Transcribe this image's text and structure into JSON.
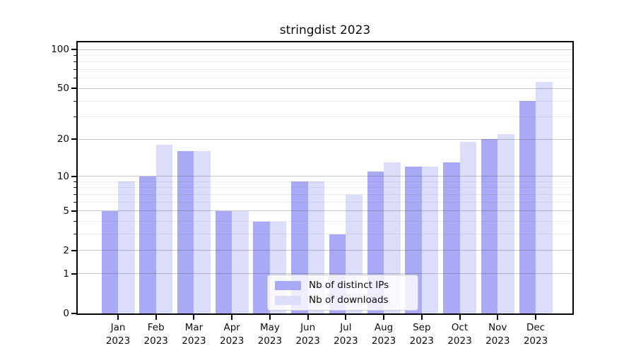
{
  "title": "stringdist 2023",
  "chart_data": {
    "type": "bar",
    "title": "stringdist 2023",
    "categories": [
      "Jan",
      "Feb",
      "Mar",
      "Apr",
      "May",
      "Jun",
      "Jul",
      "Aug",
      "Sep",
      "Oct",
      "Nov",
      "Dec"
    ],
    "year_label": "2023",
    "series": [
      {
        "name": "Nb of distinct IPs",
        "color": "#a9a9f8",
        "values": [
          5,
          10,
          16,
          5,
          4,
          9,
          3,
          11,
          12,
          13,
          20,
          40
        ]
      },
      {
        "name": "Nb of downloads",
        "color": "#dcdcfb",
        "values": [
          9,
          18,
          16,
          5,
          4,
          9,
          7,
          13,
          12,
          19,
          22,
          56
        ]
      }
    ],
    "yscale": "log1p",
    "ylim": [
      0,
      113
    ],
    "yticks_major": [
      0,
      1,
      2,
      5,
      10,
      20,
      50,
      100
    ],
    "yticks_minor": [
      3,
      4,
      6,
      7,
      8,
      9,
      30,
      40,
      60,
      70,
      80,
      90
    ],
    "grid": true,
    "legend_position": "lower center"
  },
  "colors": {
    "axis": "#000000",
    "text": "#0d0d0d",
    "grid_major": "rgba(70,70,70,0.30)",
    "grid_minor": "rgba(128,128,128,0.16)",
    "background": "#ffffff"
  }
}
